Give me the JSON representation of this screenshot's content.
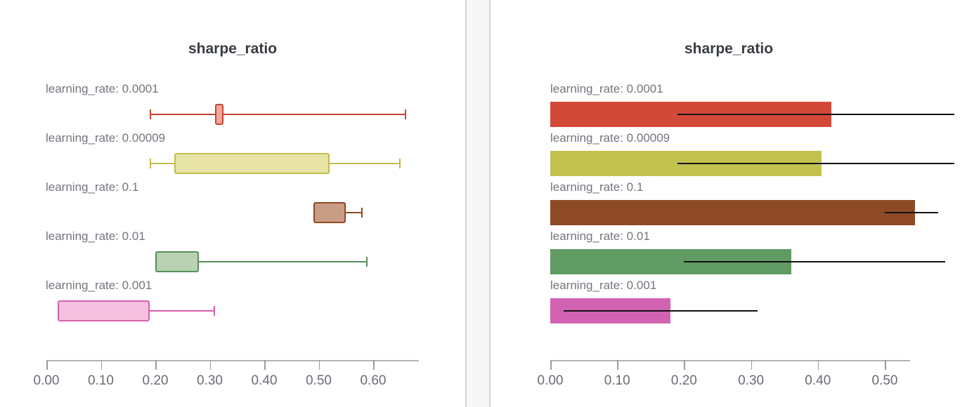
{
  "chart_data": [
    {
      "type": "box",
      "orientation": "horizontal",
      "title": "sharpe_ratio",
      "categories": [
        "learning_rate: 0.0001",
        "learning_rate: 0.00009",
        "learning_rate: 0.1",
        "learning_rate: 0.01",
        "learning_rate: 0.001"
      ],
      "boxes": [
        {
          "whisker_min": 0.19,
          "q1": 0.31,
          "q3": 0.325,
          "whisker_max": 0.66
        },
        {
          "whisker_min": 0.19,
          "q1": 0.235,
          "q3": 0.52,
          "whisker_max": 0.65
        },
        {
          "whisker_min": 0.49,
          "q1": 0.49,
          "q3": 0.55,
          "whisker_max": 0.58
        },
        {
          "whisker_min": 0.2,
          "q1": 0.2,
          "q3": 0.28,
          "whisker_max": 0.59
        },
        {
          "whisker_min": 0.02,
          "q1": 0.02,
          "q3": 0.19,
          "whisker_max": 0.31
        }
      ],
      "box_styles": [
        {
          "stroke": "#c8432f",
          "fill": "#efaa9e"
        },
        {
          "stroke": "#c2bc4d",
          "fill": "#e6e3a4"
        },
        {
          "stroke": "#8f4a22",
          "fill": "#c99c86"
        },
        {
          "stroke": "#549059",
          "fill": "#b9d2b3"
        },
        {
          "stroke": "#d75fae",
          "fill": "#f4c2e0"
        }
      ],
      "xtick_values": [
        0,
        0.1,
        0.2,
        0.3,
        0.4,
        0.5,
        0.6
      ],
      "xtick_labels": [
        "0.00",
        "0.10",
        "0.20",
        "0.30",
        "0.40",
        "0.50",
        "0.60"
      ],
      "xlim": [
        0,
        0.684
      ],
      "xlabel": "",
      "ylabel": "",
      "grid": false,
      "legend": "none"
    },
    {
      "type": "bar",
      "orientation": "horizontal",
      "title": "sharpe_ratio",
      "categories": [
        "learning_rate: 0.0001",
        "learning_rate: 0.00009",
        "learning_rate: 0.1",
        "learning_rate: 0.01",
        "learning_rate: 0.001"
      ],
      "values": [
        0.42,
        0.405,
        0.545,
        0.36,
        0.18
      ],
      "error_bars": [
        {
          "low": 0.19,
          "high": 0.66
        },
        {
          "low": 0.19,
          "high": 0.65
        },
        {
          "low": 0.5,
          "high": 0.58
        },
        {
          "low": 0.2,
          "high": 0.59
        },
        {
          "low": 0.02,
          "high": 0.31
        }
      ],
      "bar_colors": [
        "#d34937",
        "#c2c24f",
        "#8e4a24",
        "#5f9b63",
        "#d263b2"
      ],
      "error_bar_color": "#111111",
      "xtick_values": [
        0,
        0.1,
        0.2,
        0.3,
        0.4,
        0.5
      ],
      "xtick_labels": [
        "0.00",
        "0.10",
        "0.20",
        "0.30",
        "0.40",
        "0.50"
      ],
      "xlim": [
        0,
        0.604
      ],
      "xlabel": "",
      "ylabel": "",
      "grid": false,
      "legend": "none"
    }
  ],
  "theme": {
    "title_color": "#383c42",
    "label_color": "#74747e",
    "axis_text_color": "#6b6b75",
    "axis_line_color": "#b3b3b3",
    "panel_bg": "#ffffff",
    "divider_bg": "#f7f7f7",
    "divider_border": "#d2d2d2"
  }
}
